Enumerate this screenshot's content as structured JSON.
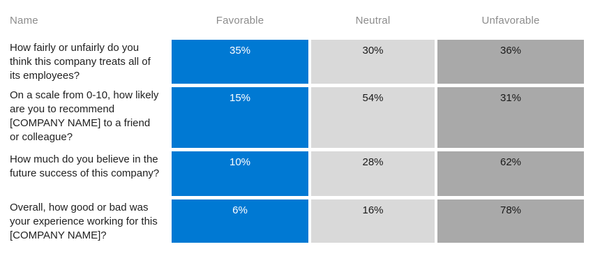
{
  "table": {
    "header": {
      "name": "Name",
      "favorable": "Favorable",
      "neutral": "Neutral",
      "unfavorable": "Unfavorable"
    },
    "rows": [
      {
        "question": "How fairly or unfairly do you think this company treats all of its employees?",
        "favorable": "35%",
        "neutral": "30%",
        "unfavorable": "36%"
      },
      {
        "question": "On a scale from 0-10, how likely are you to recommend [COMPANY NAME] to a friend or colleague?",
        "favorable": "15%",
        "neutral": "54%",
        "unfavorable": "31%"
      },
      {
        "question": "How much do you believe in the future success of this company?",
        "favorable": "10%",
        "neutral": "28%",
        "unfavorable": "62%"
      },
      {
        "question": "Overall, how good or bad was your experience working for this [COMPANY NAME]?",
        "favorable": "6%",
        "neutral": "16%",
        "unfavorable": "78%"
      }
    ]
  },
  "colors": {
    "favorable": "#0079d3",
    "neutral": "#d9d9d9",
    "unfavorable": "#a9a9a9",
    "header_text": "#8c8c8c",
    "question_text": "#212121",
    "value_text_on_blue": "#ffffff",
    "value_text_on_gray": "#1a1a1a"
  },
  "chart_data": {
    "type": "table",
    "title": "",
    "categories": [
      "How fairly or unfairly do you think this company treats all of its employees?",
      "On a scale from 0-10, how likely are you to recommend [COMPANY NAME] to a friend or colleague?",
      "How much do you believe in the future success of this company?",
      "Overall, how good or bad was your experience working for this [COMPANY NAME]?"
    ],
    "series": [
      {
        "name": "Favorable",
        "values": [
          35,
          15,
          10,
          6
        ]
      },
      {
        "name": "Neutral",
        "values": [
          30,
          54,
          28,
          16
        ]
      },
      {
        "name": "Unfavorable",
        "values": [
          36,
          31,
          62,
          78
        ]
      }
    ],
    "value_unit": "%",
    "legend_position": "top-header",
    "grid": false
  }
}
